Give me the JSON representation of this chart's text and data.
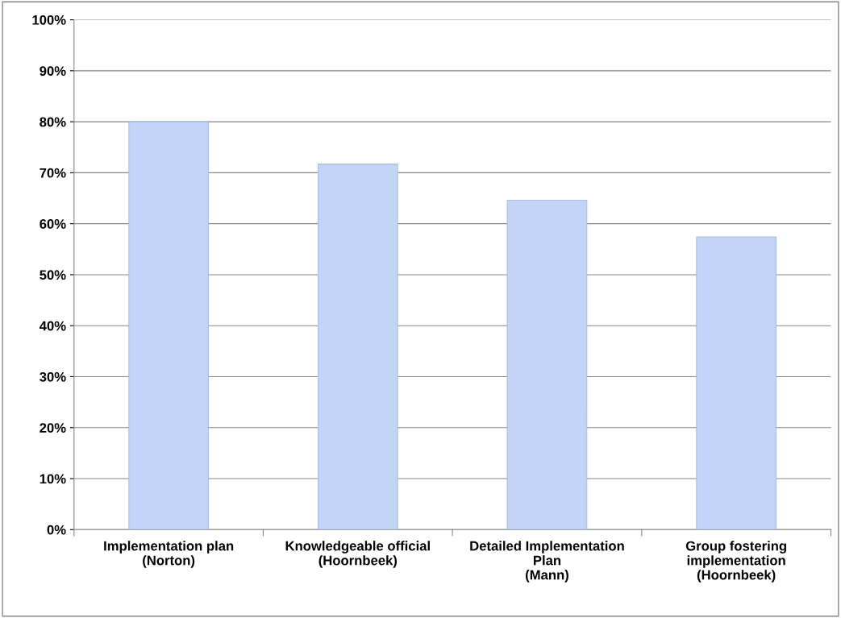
{
  "chart_data": {
    "type": "bar",
    "categories": [
      "Implementation plan\n(Norton)",
      "Knowledgeable official\n(Hoornbeek)",
      "Detailed Implementation\nPlan\n(Mann)",
      "Group fostering\nimplementation\n(Hoornbeek)"
    ],
    "values": [
      80,
      71.7,
      64.6,
      57.4
    ],
    "color": "#c2d5f6",
    "ylim": [
      0,
      100
    ],
    "yticks": [
      {
        "value": 0,
        "label": "0%"
      },
      {
        "value": 10,
        "label": "10%"
      },
      {
        "value": 20,
        "label": "20%"
      },
      {
        "value": 30,
        "label": "30%"
      },
      {
        "value": 40,
        "label": "40%"
      },
      {
        "value": 50,
        "label": "50%"
      },
      {
        "value": 60,
        "label": "60%"
      },
      {
        "value": 70,
        "label": "70%"
      },
      {
        "value": 80,
        "label": "80%"
      },
      {
        "value": 90,
        "label": "90%"
      },
      {
        "value": 100,
        "label": "100%"
      }
    ],
    "grid": "y",
    "legend": false
  }
}
